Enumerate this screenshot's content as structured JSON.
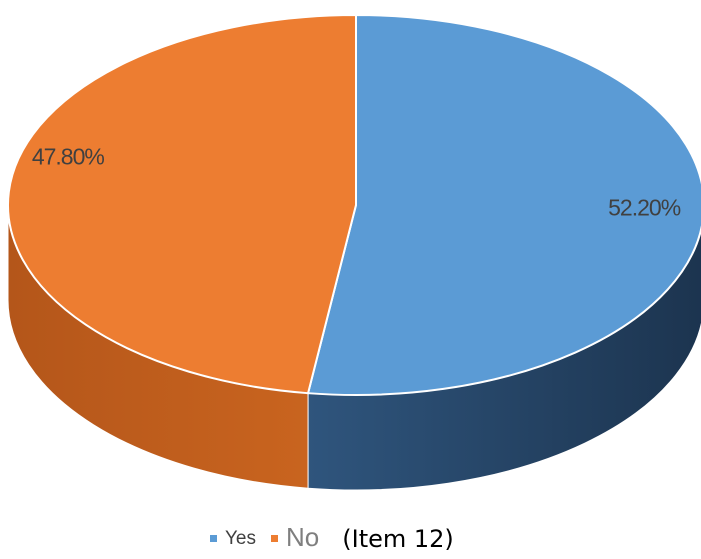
{
  "chart_data": {
    "type": "pie3d",
    "categories": [
      "Yes",
      "No"
    ],
    "values": [
      52.2,
      47.8
    ],
    "value_labels": [
      "52.20%",
      "47.80%"
    ],
    "colors": [
      "#5b9bd5",
      "#ed7d31"
    ],
    "caption": "(Item 12)"
  }
}
